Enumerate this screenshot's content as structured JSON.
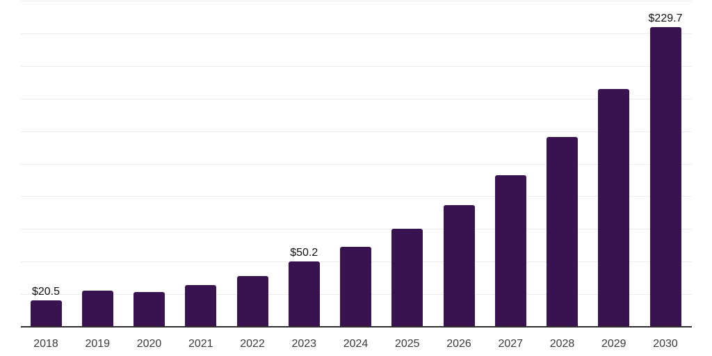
{
  "chart_data": {
    "type": "bar",
    "title": "",
    "xlabel": "",
    "ylabel": "",
    "categories": [
      "2018",
      "2019",
      "2020",
      "2021",
      "2022",
      "2023",
      "2024",
      "2025",
      "2026",
      "2027",
      "2028",
      "2029",
      "2030"
    ],
    "values": [
      20.5,
      27.8,
      26.7,
      32.0,
      39.0,
      50.2,
      61.4,
      75.3,
      93.5,
      116.4,
      145.3,
      182.1,
      229.7
    ],
    "value_prefix": "$",
    "labels_by_category": {
      "2018": "$20.5",
      "2023": "$50.2",
      "2030": "$229.7"
    },
    "ylim": [
      0,
      250
    ],
    "grid": {
      "horizontal": true,
      "vertical": false,
      "step": 25
    },
    "legend": "none",
    "y_tick_labels_shown": false,
    "colors": {
      "bar": "#38134f",
      "gridline": "#ececec",
      "axis_line": "#2e2e2e",
      "tick_label": "#3b3b3b",
      "value_label": "#0f0f0f",
      "background": "#ffffff"
    }
  }
}
